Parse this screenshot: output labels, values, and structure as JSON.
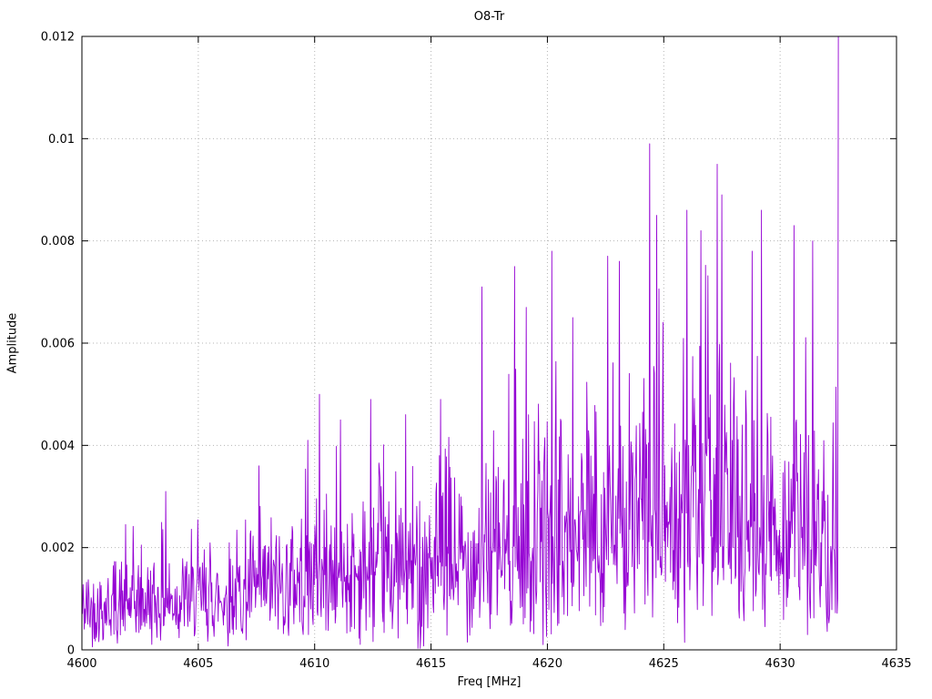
{
  "chart_data": {
    "type": "line",
    "title": "O8-Tr",
    "xlabel": "Freq [MHz]",
    "ylabel": "Amplitude",
    "xlim": [
      4600,
      4635
    ],
    "ylim": [
      0,
      0.012
    ],
    "x_ticks": [
      4600,
      4605,
      4610,
      4615,
      4620,
      4625,
      4630,
      4635
    ],
    "x_tick_labels": [
      "4600",
      "4605",
      "4610",
      "4615",
      "4620",
      "4625",
      "4630",
      "4635"
    ],
    "y_ticks": [
      0,
      0.002,
      0.004,
      0.006,
      0.008,
      0.01,
      0.012
    ],
    "y_tick_labels": [
      "0",
      "0.002",
      "0.004",
      "0.006",
      "0.008",
      "0.01",
      "0.012"
    ],
    "grid": true,
    "grid_style": "dotted",
    "grid_color": "#b5b5b5",
    "legend": "none",
    "line_color": "#9400D3",
    "series": [
      {
        "name": "O8-Tr",
        "x_start": 4600,
        "x_end": 4632.5,
        "n_points": 1300,
        "noise_model": "rayleigh",
        "seed": 42,
        "envelope_sigma": [
          [
            4600,
            0.00065
          ],
          [
            4602,
            0.00075
          ],
          [
            4604,
            0.0008
          ],
          [
            4606,
            0.00085
          ],
          [
            4608,
            0.001
          ],
          [
            4610,
            0.0012
          ],
          [
            4612,
            0.00125
          ],
          [
            4614,
            0.0013
          ],
          [
            4616,
            0.0014
          ],
          [
            4618,
            0.0016
          ],
          [
            4620,
            0.0018
          ],
          [
            4622,
            0.0019
          ],
          [
            4624,
            0.0021
          ],
          [
            4626,
            0.0022
          ],
          [
            4627,
            0.0023
          ],
          [
            4628,
            0.0022
          ],
          [
            4629,
            0.0021
          ],
          [
            4630,
            0.002
          ],
          [
            4631,
            0.0019
          ],
          [
            4632.5,
            0.0017
          ]
        ],
        "peaks": [
          [
            4603.6,
            0.0031
          ],
          [
            4607.6,
            0.0036
          ],
          [
            4609.7,
            0.0041
          ],
          [
            4610.2,
            0.005
          ],
          [
            4611.1,
            0.0045
          ],
          [
            4612.4,
            0.0049
          ],
          [
            4613.9,
            0.0046
          ],
          [
            4615.4,
            0.0049
          ],
          [
            4617.2,
            0.0071
          ],
          [
            4618.6,
            0.0075
          ],
          [
            4619.1,
            0.0067
          ],
          [
            4620.2,
            0.0078
          ],
          [
            4621.1,
            0.0065
          ],
          [
            4622.6,
            0.0077
          ],
          [
            4623.1,
            0.0076
          ],
          [
            4624.4,
            0.0099
          ],
          [
            4624.7,
            0.0085
          ],
          [
            4626.0,
            0.0086
          ],
          [
            4626.6,
            0.0082
          ],
          [
            4627.3,
            0.0095
          ],
          [
            4627.5,
            0.0089
          ],
          [
            4628.8,
            0.0078
          ],
          [
            4629.2,
            0.0086
          ],
          [
            4630.6,
            0.0083
          ],
          [
            4631.4,
            0.008
          ],
          [
            4632.5,
            0.012
          ]
        ]
      }
    ]
  }
}
